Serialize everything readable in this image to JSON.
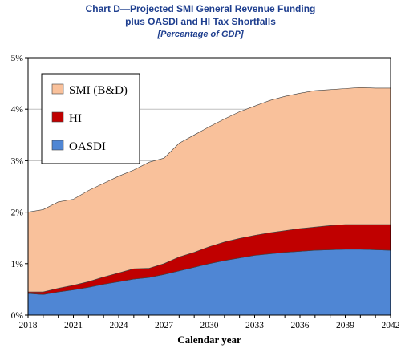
{
  "chart_data": {
    "type": "area",
    "title": "Chart D—Projected SMI General Revenue Funding",
    "subtitle": "plus OASDI and HI Tax Shortfalls",
    "units_note": "[Percentage of GDP]",
    "xlabel": "Calendar year",
    "ylabel": "",
    "stacked": true,
    "x": [
      2018,
      2019,
      2020,
      2021,
      2022,
      2023,
      2024,
      2025,
      2026,
      2027,
      2028,
      2029,
      2030,
      2031,
      2032,
      2033,
      2034,
      2035,
      2036,
      2037,
      2038,
      2039,
      2040,
      2041,
      2042
    ],
    "series": [
      {
        "name": "OASDI",
        "color": "#4f86d4",
        "values": [
          0.42,
          0.4,
          0.45,
          0.49,
          0.54,
          0.6,
          0.65,
          0.7,
          0.73,
          0.79,
          0.86,
          0.93,
          1.0,
          1.06,
          1.11,
          1.16,
          1.19,
          1.22,
          1.24,
          1.26,
          1.27,
          1.28,
          1.28,
          1.27,
          1.26
        ]
      },
      {
        "name": "HI",
        "color": "#c00000",
        "values": [
          0.03,
          0.05,
          0.07,
          0.09,
          0.11,
          0.14,
          0.17,
          0.2,
          0.18,
          0.21,
          0.27,
          0.29,
          0.33,
          0.36,
          0.38,
          0.39,
          0.41,
          0.42,
          0.44,
          0.45,
          0.47,
          0.48,
          0.48,
          0.49,
          0.5
        ]
      },
      {
        "name": "SMI (B&D)",
        "color": "#f9c19b",
        "values": [
          1.55,
          1.6,
          1.68,
          1.67,
          1.77,
          1.82,
          1.88,
          1.92,
          2.06,
          2.05,
          2.21,
          2.28,
          2.33,
          2.39,
          2.46,
          2.51,
          2.57,
          2.61,
          2.63,
          2.65,
          2.64,
          2.64,
          2.66,
          2.65,
          2.65
        ]
      }
    ],
    "xlim": [
      2018,
      2042
    ],
    "ylim": [
      0,
      5
    ],
    "x_ticks": [
      "2018",
      "2021",
      "2024",
      "2027",
      "2030",
      "2033",
      "2036",
      "2039",
      "2042"
    ],
    "y_ticks": [
      "0%",
      "1%",
      "2%",
      "3%",
      "4%",
      "5%"
    ],
    "grid": "horizontal",
    "legend_position": "top-left"
  }
}
